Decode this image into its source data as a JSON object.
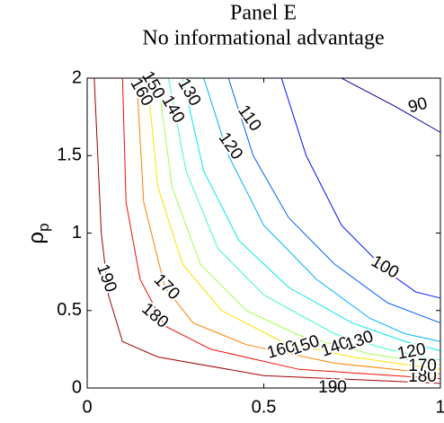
{
  "chart_data": {
    "type": "contour",
    "title": "Panel E",
    "subtitle": "No informational advantage",
    "y_label": "ρ",
    "y_label_subscript": "p",
    "xlim": [
      0,
      1
    ],
    "ylim": [
      0,
      2
    ],
    "xticks": [
      0,
      0.5,
      1
    ],
    "yticks": [
      0,
      0.5,
      1,
      1.5,
      2
    ],
    "contours": [
      {
        "level": 90,
        "color": "#0000a8",
        "x": [
          0.72,
          0.87,
          1
        ],
        "y": [
          2,
          1.82,
          1.65
        ]
      },
      {
        "level": 100,
        "color": "#0010ff",
        "x": [
          0.55,
          0.62,
          0.72,
          0.85,
          0.93,
          1
        ],
        "y": [
          2,
          1.5,
          1.05,
          0.75,
          0.62,
          0.58
        ]
      },
      {
        "level": 110,
        "color": "#0060ff",
        "x": [
          0.4,
          0.47,
          0.57,
          0.7,
          0.85,
          1
        ],
        "y": [
          2,
          1.5,
          1.1,
          0.8,
          0.55,
          0.42
        ]
      },
      {
        "level": 120,
        "color": "#00b0ff",
        "x": [
          0.33,
          0.4,
          0.5,
          0.65,
          0.8,
          0.9,
          1
        ],
        "y": [
          2,
          1.5,
          1.05,
          0.7,
          0.45,
          0.35,
          0.3
        ]
      },
      {
        "level": 130,
        "color": "#00e8f0",
        "x": [
          0.27,
          0.33,
          0.43,
          0.57,
          0.75,
          0.9,
          1
        ],
        "y": [
          2,
          1.4,
          0.95,
          0.65,
          0.42,
          0.3,
          0.24
        ]
      },
      {
        "level": 140,
        "color": "#40ffb0",
        "x": [
          0.23,
          0.28,
          0.37,
          0.5,
          0.7,
          0.85,
          1
        ],
        "y": [
          2,
          1.4,
          0.9,
          0.6,
          0.35,
          0.25,
          0.18
        ]
      },
      {
        "level": 150,
        "color": "#a0ff50",
        "x": [
          0.2,
          0.24,
          0.32,
          0.45,
          0.6,
          0.8,
          1
        ],
        "y": [
          2,
          1.3,
          0.8,
          0.5,
          0.34,
          0.22,
          0.15
        ]
      },
      {
        "level": 160,
        "color": "#ffe000",
        "x": [
          0.17,
          0.2,
          0.27,
          0.38,
          0.55,
          0.75,
          1
        ],
        "y": [
          2,
          1.3,
          0.8,
          0.5,
          0.3,
          0.2,
          0.12
        ]
      },
      {
        "level": 170,
        "color": "#ff8000",
        "x": [
          0.14,
          0.16,
          0.22,
          0.3,
          0.45,
          0.7,
          1
        ],
        "y": [
          2,
          1.2,
          0.65,
          0.42,
          0.28,
          0.16,
          0.09
        ]
      },
      {
        "level": 180,
        "color": "#f01000",
        "x": [
          0.1,
          0.11,
          0.15,
          0.22,
          0.35,
          0.6,
          1
        ],
        "y": [
          2,
          1.2,
          0.7,
          0.4,
          0.25,
          0.12,
          0.06
        ]
      },
      {
        "level": 190,
        "color": "#a00000",
        "x": [
          0.02,
          0.04,
          0.06,
          0.1,
          0.2,
          0.5,
          1
        ],
        "y": [
          2,
          1,
          0.6,
          0.3,
          0.2,
          0.08,
          0.03
        ]
      }
    ]
  }
}
